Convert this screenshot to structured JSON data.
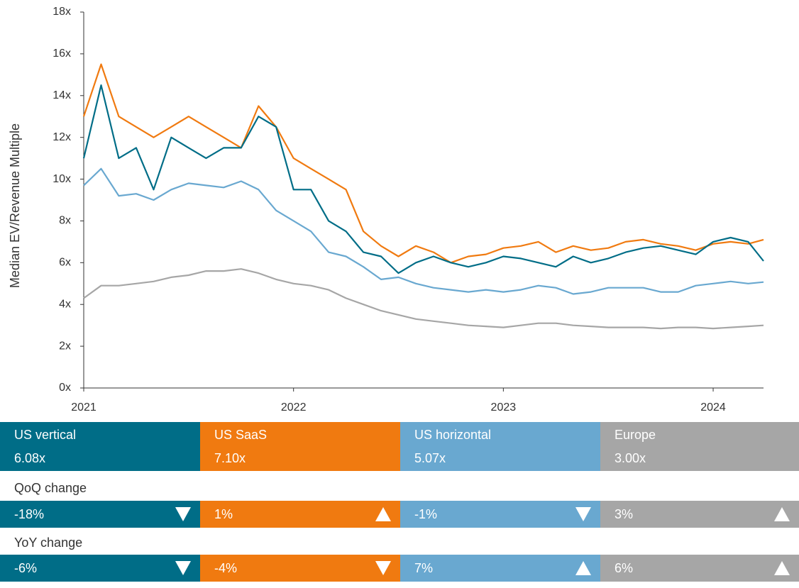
{
  "chart_data": {
    "type": "line",
    "y_label": "Median EV/Revenue Multiple",
    "x": [
      2021.0,
      2021.083,
      2021.167,
      2021.25,
      2021.333,
      2021.417,
      2021.5,
      2021.583,
      2021.667,
      2021.75,
      2021.833,
      2021.917,
      2022.0,
      2022.083,
      2022.167,
      2022.25,
      2022.333,
      2022.417,
      2022.5,
      2022.583,
      2022.667,
      2022.75,
      2022.833,
      2022.917,
      2023.0,
      2023.083,
      2023.167,
      2023.25,
      2023.333,
      2023.417,
      2023.5,
      2023.583,
      2023.667,
      2023.75,
      2023.833,
      2023.917,
      2024.0,
      2024.083,
      2024.167,
      2024.24
    ],
    "xlim": [
      2021,
      2024.24
    ],
    "xticks": [
      2021,
      2022,
      2023,
      2024
    ],
    "ylim": [
      0,
      18
    ],
    "yticks": [
      {
        "value": 0,
        "label": "0x"
      },
      {
        "value": 2,
        "label": "2x"
      },
      {
        "value": 4,
        "label": "4x"
      },
      {
        "value": 6,
        "label": "6x"
      },
      {
        "value": 8,
        "label": "8x"
      },
      {
        "value": 10,
        "label": "10x"
      },
      {
        "value": 12,
        "label": "12x"
      },
      {
        "value": 14,
        "label": "14x"
      },
      {
        "value": 16,
        "label": "16x"
      },
      {
        "value": 18,
        "label": "18x"
      }
    ],
    "series": [
      {
        "name": "US vertical",
        "color": "#006d87",
        "latest": "6.08x",
        "qoq": "-18%",
        "qoq_trend": "down",
        "yoy": "-6%",
        "yoy_trend": "down",
        "values": [
          11,
          14.5,
          11,
          11.5,
          9.5,
          12,
          11.5,
          11,
          11.5,
          11.5,
          13,
          12.5,
          9.5,
          9.5,
          8,
          7.5,
          6.5,
          6.3,
          5.5,
          6,
          6.3,
          6,
          5.8,
          6,
          6.3,
          6.2,
          6,
          5.8,
          6.3,
          6,
          6.2,
          6.5,
          6.7,
          6.8,
          6.6,
          6.4,
          7,
          7.2,
          7,
          6.08
        ]
      },
      {
        "name": "US SaaS",
        "color": "#f07a10",
        "latest": "7.10x",
        "qoq": "1%",
        "qoq_trend": "up",
        "yoy": "-4%",
        "yoy_trend": "down",
        "values": [
          13,
          15.5,
          13,
          12.5,
          12,
          12.5,
          13,
          12.5,
          12,
          11.5,
          13.5,
          12.5,
          11,
          10.5,
          10,
          9.5,
          7.5,
          6.8,
          6.3,
          6.8,
          6.5,
          6,
          6.3,
          6.4,
          6.7,
          6.8,
          7,
          6.5,
          6.8,
          6.6,
          6.7,
          7,
          7.1,
          6.9,
          6.8,
          6.6,
          6.9,
          7,
          6.9,
          7.1
        ]
      },
      {
        "name": "US horizontal",
        "color": "#69a8d0",
        "latest": "5.07x",
        "qoq": "-1%",
        "qoq_trend": "down",
        "yoy": "7%",
        "yoy_trend": "up",
        "values": [
          9.7,
          10.5,
          9.2,
          9.3,
          9,
          9.5,
          9.8,
          9.7,
          9.6,
          9.9,
          9.5,
          8.5,
          8,
          7.5,
          6.5,
          6.3,
          5.8,
          5.2,
          5.3,
          5.0,
          4.8,
          4.7,
          4.6,
          4.7,
          4.6,
          4.7,
          4.9,
          4.8,
          4.5,
          4.6,
          4.8,
          4.8,
          4.8,
          4.6,
          4.6,
          4.9,
          5.0,
          5.1,
          5.0,
          5.07
        ]
      },
      {
        "name": "Europe",
        "color": "#a6a6a6",
        "latest": "3.00x",
        "qoq": "3%",
        "qoq_trend": "up",
        "yoy": "6%",
        "yoy_trend": "up",
        "values": [
          4.3,
          4.9,
          4.9,
          5.0,
          5.1,
          5.3,
          5.4,
          5.6,
          5.6,
          5.7,
          5.5,
          5.2,
          5.0,
          4.9,
          4.7,
          4.3,
          4.0,
          3.7,
          3.5,
          3.3,
          3.2,
          3.1,
          3.0,
          2.95,
          2.9,
          3.0,
          3.1,
          3.1,
          3.0,
          2.95,
          2.9,
          2.9,
          2.9,
          2.85,
          2.9,
          2.9,
          2.85,
          2.9,
          2.95,
          3.0
        ]
      }
    ],
    "qoq_label": "QoQ change",
    "yoy_label": "YoY change"
  }
}
